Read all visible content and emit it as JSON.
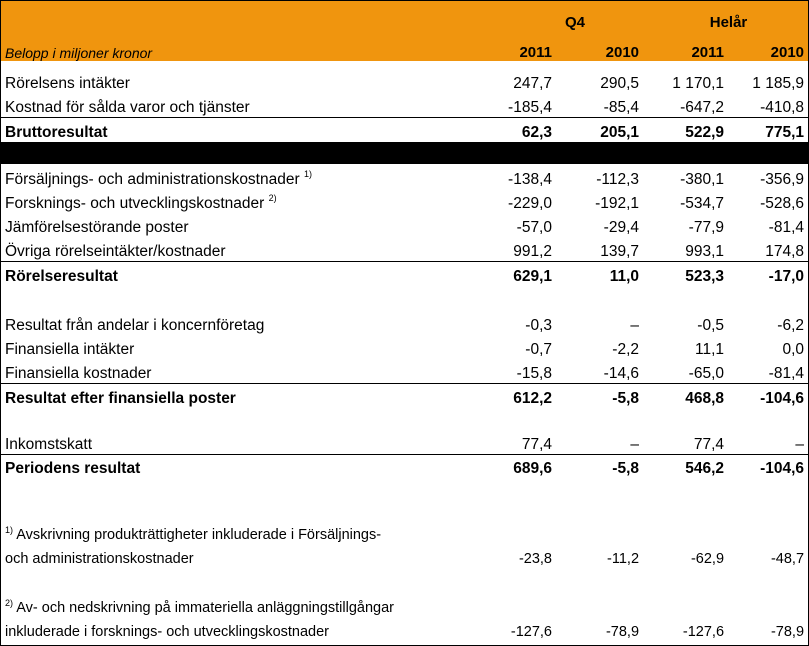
{
  "header": {
    "group_q4": "Q4",
    "group_year": "Helår",
    "unit": "Belopp i miljoner kronor",
    "years": [
      "2011",
      "2010",
      "2011",
      "2010"
    ]
  },
  "rows": {
    "intakter": {
      "label": "Rörelsens intäkter",
      "v": [
        "247,7",
        "290,5",
        "1 170,1",
        "1 185,9"
      ]
    },
    "kostnad_salda": {
      "label": "Kostnad för sålda varor och tjänster",
      "v": [
        "-185,4",
        "-85,4",
        "-647,2",
        "-410,8"
      ]
    },
    "brutto": {
      "label": "Bruttoresultat",
      "v": [
        "62,3",
        "205,1",
        "522,9",
        "775,1"
      ]
    },
    "forsaljning": {
      "label": "Försäljnings- och administrationskostnader",
      "sup": "1)",
      "v": [
        "-138,4",
        "-112,3",
        "-380,1",
        "-356,9"
      ]
    },
    "forskning": {
      "label": "Forsknings- och utvecklingskostnader",
      "sup": "2)",
      "v": [
        "-229,0",
        "-192,1",
        "-534,7",
        "-528,6"
      ]
    },
    "jamforelse": {
      "label": "Jämförelsestörande poster",
      "v": [
        "-57,0",
        "-29,4",
        "-77,9",
        "-81,4"
      ]
    },
    "ovriga": {
      "label": "Övriga rörelseintäkter/kostnader",
      "v": [
        "991,2",
        "139,7",
        "993,1",
        "174,8"
      ]
    },
    "rorelse": {
      "label": "Rörelseresultat",
      "v": [
        "629,1",
        "11,0",
        "523,3",
        "-17,0"
      ]
    },
    "andelar": {
      "label": "Resultat från andelar i koncernföretag",
      "v": [
        "-0,3",
        "–",
        "-0,5",
        "-6,2"
      ]
    },
    "fin_intakter": {
      "label": "Finansiella intäkter",
      "v": [
        "-0,7",
        "-2,2",
        "11,1",
        "0,0"
      ]
    },
    "fin_kostnader": {
      "label": "Finansiella kostnader",
      "v": [
        "-15,8",
        "-14,6",
        "-65,0",
        "-81,4"
      ]
    },
    "efter_fin": {
      "label": "Resultat efter finansiella poster",
      "v": [
        "612,2",
        "-5,8",
        "468,8",
        "-104,6"
      ]
    },
    "skatt": {
      "label": "Inkomstskatt",
      "v": [
        "77,4",
        "–",
        "77,4",
        "–"
      ]
    },
    "periodens": {
      "label": "Periodens resultat",
      "v": [
        "689,6",
        "-5,8",
        "546,2",
        "-104,6"
      ]
    }
  },
  "footnotes": {
    "fn1": {
      "sup": "1)",
      "line1": " Avskrivning produkträttigheter inkluderade i Försäljnings-",
      "line2": "och administrationskostnader",
      "v": [
        "-23,8",
        "-11,2",
        "-62,9",
        "-48,7"
      ]
    },
    "fn2": {
      "sup": "2)",
      "line1": " Av- och nedskrivning på immateriella anläggningstillgångar",
      "line2": "inkluderade i forsknings- och utvecklingskostnader",
      "v": [
        "-127,6",
        "-78,9",
        "-127,6",
        "-78,9"
      ]
    }
  }
}
